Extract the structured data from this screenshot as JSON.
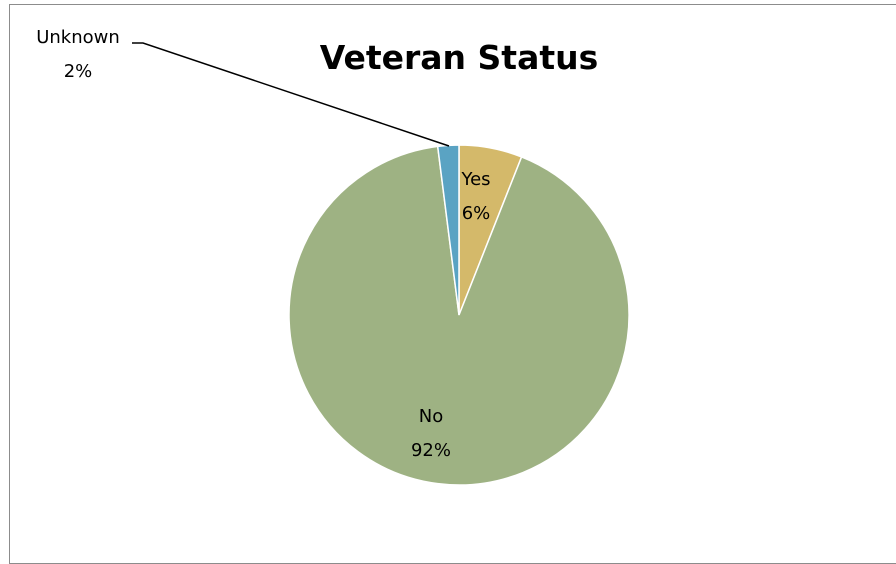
{
  "chart_data": {
    "type": "pie",
    "title": "Veteran Status",
    "slices": [
      {
        "label": "Yes",
        "percent_label": "6%",
        "value": 6,
        "color": "#d4b96a"
      },
      {
        "label": "No",
        "percent_label": "92%",
        "value": 92,
        "color": "#9eb283"
      },
      {
        "label": "Unknown",
        "percent_label": "2%",
        "value": 2,
        "color": "#5aa3c3"
      }
    ],
    "legend": "none",
    "data_labels": "category-and-percent"
  }
}
